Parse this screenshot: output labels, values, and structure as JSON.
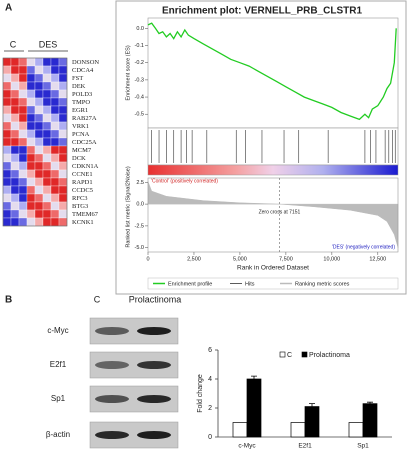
{
  "panel_labels": {
    "a": "A",
    "b": "B"
  },
  "heatmap": {
    "groups": [
      "C",
      "DES"
    ],
    "genes": [
      "DONSON",
      "CDCA4",
      "FST",
      "DEK",
      "POLD3",
      "TMPO",
      "EGR1",
      "RAB27A",
      "VRK1",
      "PCNA",
      "CDC25A",
      "MCM7",
      "DCK",
      "CDKN1A",
      "CCNE1",
      "RAPD1",
      "CCDC5",
      "RFC3",
      "BTG3",
      "TMEM67",
      "KCNK1"
    ]
  },
  "blot": {
    "groups": [
      "C",
      "Prolactinoma"
    ],
    "rows": [
      "c-Myc",
      "E2f1",
      "Sp1",
      "β-actin"
    ]
  },
  "chart_data": [
    {
      "type": "line",
      "title": "Enrichment plot: VERNELL_PRB_CLSTR1",
      "y_label": "Enrichment score (ES)",
      "x": [
        0,
        200,
        400,
        600,
        800,
        1000,
        1200,
        1400,
        1600,
        1800,
        2000,
        2200,
        2500,
        3000,
        3500,
        4000,
        4500,
        5000,
        5500,
        6000,
        6500,
        7000,
        7500,
        8000,
        8500,
        9000,
        9500,
        10000,
        10500,
        11000,
        11500,
        11800,
        12000,
        12200,
        12500,
        12800,
        13000,
        13200,
        13400,
        13500
      ],
      "series": [
        {
          "name": "Enrichment profile",
          "color": "#22cc22",
          "values": [
            0.02,
            0.03,
            0.0,
            -0.03,
            -0.02,
            -0.05,
            -0.03,
            -0.06,
            -0.02,
            -0.05,
            -0.01,
            -0.04,
            -0.06,
            -0.09,
            -0.12,
            -0.15,
            -0.18,
            -0.2,
            -0.22,
            -0.25,
            -0.28,
            -0.31,
            -0.34,
            -0.37,
            -0.4,
            -0.42,
            -0.44,
            -0.46,
            -0.49,
            -0.51,
            -0.53,
            -0.5,
            -0.52,
            -0.47,
            -0.45,
            -0.4,
            -0.35,
            -0.32,
            -0.2,
            0.0
          ]
        }
      ],
      "hits": [
        200,
        600,
        1000,
        1400,
        1800,
        2100,
        2400,
        3200,
        4800,
        5300,
        6200,
        7400,
        8200,
        9800,
        11800,
        12100,
        12400,
        12900,
        13100,
        13300,
        13450
      ],
      "legend": [
        "Hits",
        "Ranking metric scores"
      ],
      "xlim": [
        0,
        13600
      ],
      "ylim": [
        -0.58,
        0.06
      ],
      "yticks": [
        {
          "value": 0,
          "label": "0.0"
        },
        -0.1,
        -0.2,
        -0.3,
        -0.4,
        -0.5
      ]
    },
    {
      "type": "area",
      "y_label": "Ranked list metric (Signal2Noise)",
      "x_label": "Rank in Ordered Dataset",
      "annotations": [
        "'Control' (positively correlated)",
        "Zero cross at 7151",
        "'DES' (negatively correlated)"
      ],
      "x": [
        0,
        200,
        1000,
        3000,
        5000,
        7151,
        9000,
        11000,
        12500,
        13000,
        13400,
        13600
      ],
      "values": [
        2.6,
        1.5,
        0.9,
        0.4,
        0.15,
        0,
        -0.3,
        -0.7,
        -1.3,
        -2.0,
        -3.5,
        -5.0
      ],
      "color": "#bbbbbb",
      "xlim": [
        0,
        13600
      ],
      "ylim": [
        -5.5,
        3
      ],
      "xticks": [
        0,
        {
          "value": 2500,
          "label": "2,500"
        },
        {
          "value": 5000,
          "label": "5,000"
        },
        {
          "value": 7500,
          "label": "7,500"
        },
        {
          "value": 10000,
          "label": "10,000"
        },
        {
          "value": 12500,
          "label": "12,500"
        }
      ],
      "yticks": [
        2.5,
        {
          "value": 0,
          "label": "0.0"
        },
        -2.5,
        {
          "value": -5,
          "label": "-5.0"
        }
      ]
    },
    {
      "type": "bar",
      "y_label": "Fold change",
      "categories": [
        "c-Myc",
        "E2f1",
        "Sp1"
      ],
      "series": [
        {
          "name": "C",
          "color": "#ffffff",
          "values": [
            1,
            1,
            1
          ]
        },
        {
          "name": "Prolactinoma",
          "color": "#000000",
          "values": [
            4.0,
            2.1,
            2.3
          ],
          "errors": [
            0.2,
            0.2,
            0.1
          ]
        }
      ],
      "ylim": [
        0,
        6
      ],
      "yticks": [
        0,
        2,
        4,
        6
      ]
    }
  ]
}
